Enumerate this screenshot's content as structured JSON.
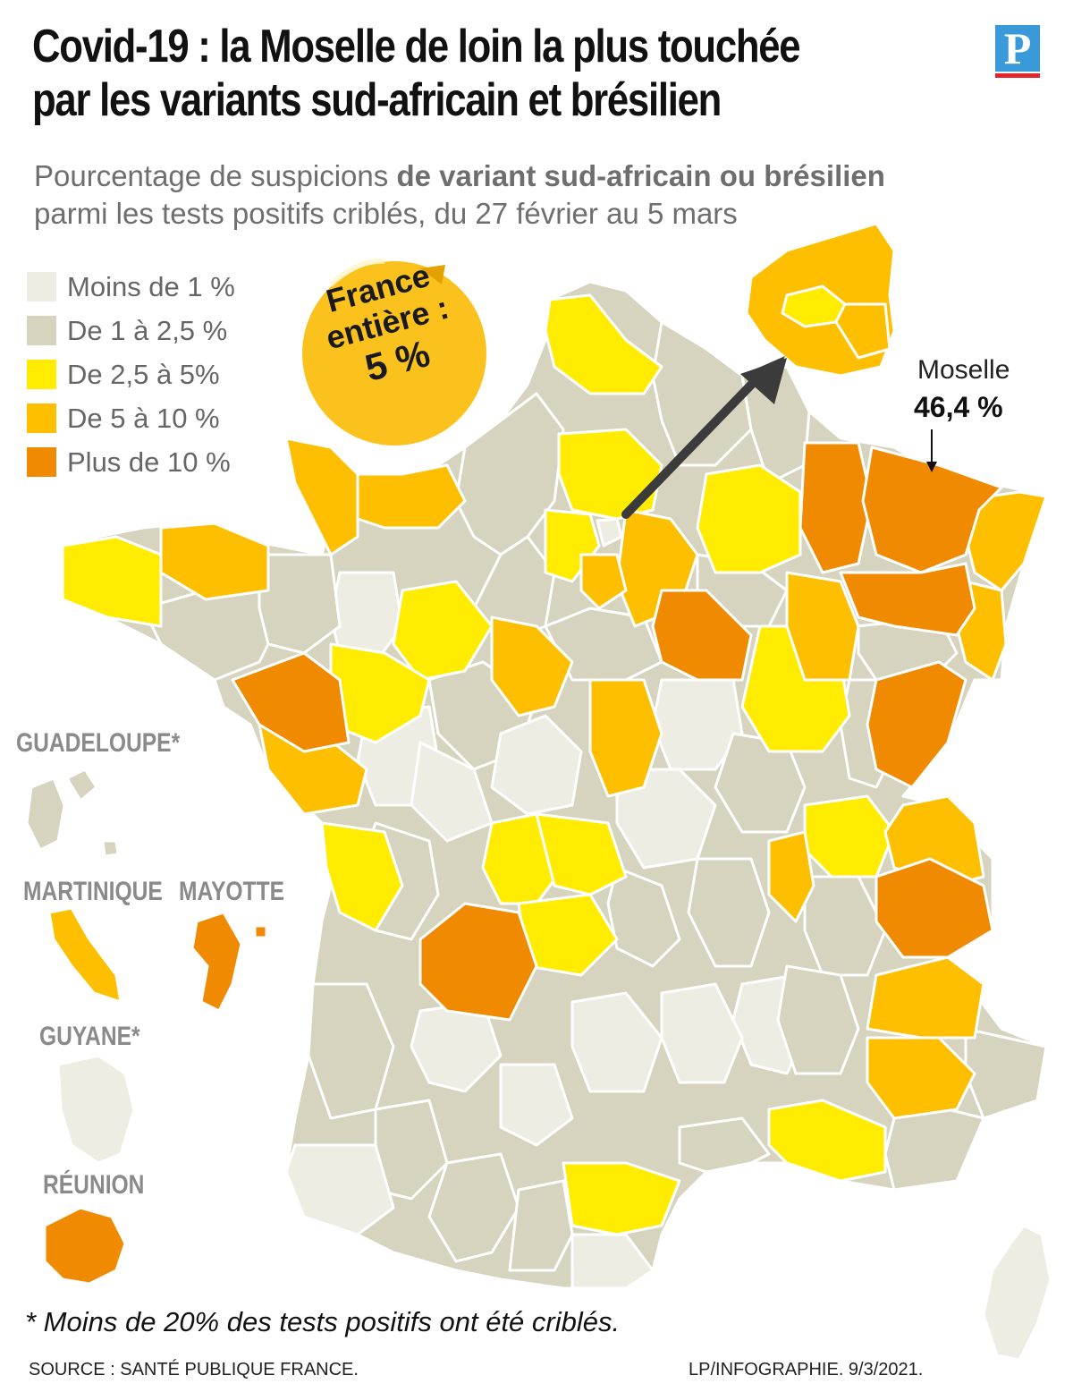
{
  "title_lines": [
    "Covid-19 : la Moselle de loin la plus touchée",
    "par les variants sud-africain et brésilien"
  ],
  "logo_letter": "P",
  "subtitle": {
    "prefix": "Pourcentage de suspicions ",
    "bold": "de variant sud-africain ou brésilien",
    "line2": "parmi les tests positifs criblés, du 27 février au 5 mars"
  },
  "legend": [
    {
      "label": "Moins de 1 %",
      "color": "#eeede4"
    },
    {
      "label": "De 1 à 2,5 %",
      "color": "#d6d3bf"
    },
    {
      "label": "De 2,5 à 5%",
      "color": "#ffec00"
    },
    {
      "label": "De 5 à 10 %",
      "color": "#fdbf00"
    },
    {
      "label": "Plus de 10 %",
      "color": "#f08a00"
    }
  ],
  "badge": {
    "line1": "France",
    "line2": "entière :",
    "line3": "5 %"
  },
  "moselle": {
    "name": "Moselle",
    "value": "46,4 %"
  },
  "overseas": {
    "guadeloupe": "GUADELOUPE*",
    "martinique": "MARTINIQUE",
    "mayotte": "MAYOTTE",
    "guyane": "GUYANE*",
    "reunion": "RÉUNION"
  },
  "footnote": "* Moins de 20% des tests positifs ont été criblés.",
  "source": "SOURCE : SANTÉ PUBLIQUE FRANCE.",
  "credit": "LP/INFOGRAPHIE.  9/3/2021."
}
